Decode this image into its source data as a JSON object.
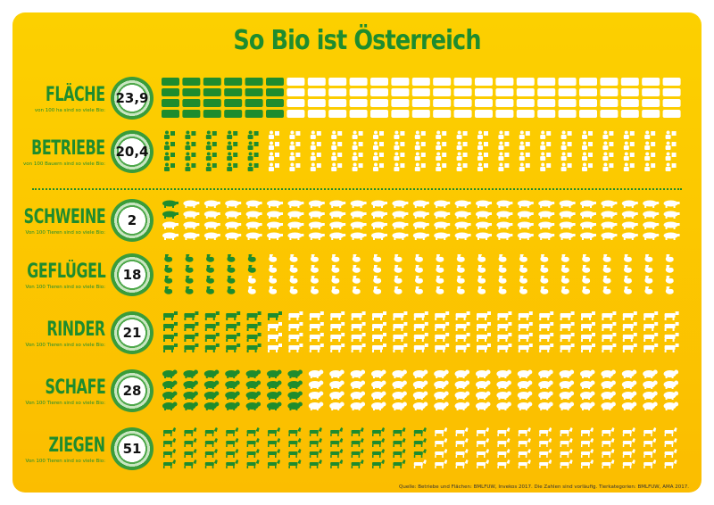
{
  "title": "So Bio ist Österreich",
  "source": "Quelle: Betriebe und Flächen: BMLFUW, Invekos 2017. Die Zahlen sind vorläufig. Tierkategorien: BMLFUW, AMA 2017.",
  "colors": {
    "background": "#fcc800",
    "bio": "#1e8c2e",
    "non_bio": "#ffffff"
  },
  "chart_data": {
    "type": "pictogram",
    "icons_per_category": 100,
    "grid": {
      "columns": 25,
      "rows": 4
    },
    "categories": [
      {
        "label": "FLÄCHE",
        "subtitle": "von 100 ha sind so viele Bio:",
        "value": 23.9,
        "value_label": "23,9",
        "icon": "field-icon"
      },
      {
        "label": "BETRIEBE",
        "subtitle": "von 100 Bauern sind so viele Bio:",
        "value": 20.4,
        "value_label": "20,4",
        "icon": "farmer-icon"
      },
      {
        "label": "SCHWEINE",
        "subtitle": "Von 100 Tieren sind so viele Bio:",
        "value": 2,
        "value_label": "2",
        "icon": "pig-icon"
      },
      {
        "label": "GEFLÜGEL",
        "subtitle": "Von 100 Tieren sind so viele Bio:",
        "value": 18,
        "value_label": "18",
        "icon": "chicken-icon"
      },
      {
        "label": "RINDER",
        "subtitle": "Von 100 Tieren sind so viele Bio:",
        "value": 21,
        "value_label": "21",
        "icon": "cow-icon"
      },
      {
        "label": "SCHAFE",
        "subtitle": "Von 100 Tieren sind so viele Bio:",
        "value": 28,
        "value_label": "28",
        "icon": "sheep-icon"
      },
      {
        "label": "ZIEGEN",
        "subtitle": "Von 100 Tieren sind so viele Bio:",
        "value": 51,
        "value_label": "51",
        "icon": "goat-icon"
      }
    ]
  }
}
